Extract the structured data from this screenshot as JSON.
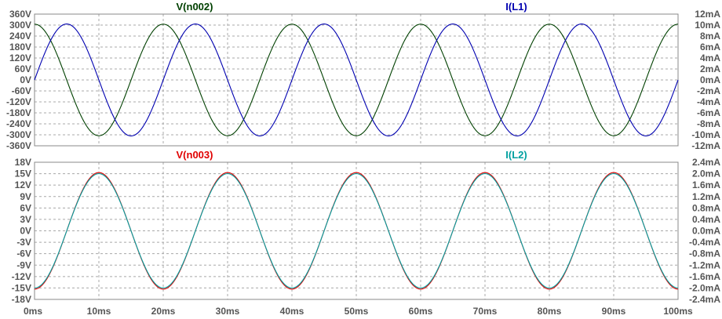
{
  "chart_data": [
    {
      "type": "line",
      "panel": "top",
      "x_ticks": [
        "0ms",
        "10ms",
        "20ms",
        "30ms",
        "40ms",
        "50ms",
        "60ms",
        "70ms",
        "80ms",
        "90ms",
        "100ms"
      ],
      "left_ticks": [
        "360V",
        "300V",
        "240V",
        "180V",
        "120V",
        "60V",
        "0V",
        "-60V",
        "-120V",
        "-180V",
        "-240V",
        "-300V",
        "-360V"
      ],
      "right_ticks": [
        "12mA",
        "10mA",
        "8mA",
        "6mA",
        "4mA",
        "2mA",
        "0mA",
        "-2mA",
        "-4mA",
        "-6mA",
        "-8mA",
        "-10mA",
        "-12mA"
      ],
      "xlim_ms": [
        0,
        100
      ],
      "ylim_left": [
        -360,
        360
      ],
      "ylim_right": [
        -12,
        12
      ],
      "grid": true,
      "series": [
        {
          "name": "V(n002)",
          "color": "#004000",
          "axis": "left",
          "kind": "cosine",
          "amplitude": 305,
          "period_ms": 20,
          "phase_ms": 0
        },
        {
          "name": "I(L1)",
          "color": "#0000b0",
          "axis": "right",
          "kind": "sine",
          "amplitude": 10.2,
          "period_ms": 20,
          "phase_ms": 0
        }
      ]
    },
    {
      "type": "line",
      "panel": "bottom",
      "x_ticks": [
        "0ms",
        "10ms",
        "20ms",
        "30ms",
        "40ms",
        "50ms",
        "60ms",
        "70ms",
        "80ms",
        "90ms",
        "100ms"
      ],
      "left_ticks": [
        "18V",
        "15V",
        "12V",
        "9V",
        "6V",
        "3V",
        "0V",
        "-3V",
        "-6V",
        "-9V",
        "-12V",
        "-15V",
        "-18V"
      ],
      "right_ticks": [
        "2.4mA",
        "2.0mA",
        "1.6mA",
        "1.2mA",
        "0.8mA",
        "0.4mA",
        "0.0mA",
        "-0.4mA",
        "-0.8mA",
        "-1.2mA",
        "-1.6mA",
        "-2.0mA",
        "-2.4mA"
      ],
      "xlim_ms": [
        0,
        100
      ],
      "ylim_left": [
        -18,
        18
      ],
      "ylim_right": [
        -2.4,
        2.4
      ],
      "grid": true,
      "series": [
        {
          "name": "V(n003)",
          "color": "#e00000",
          "axis": "left",
          "kind": "neg-cosine",
          "amplitude": 15.3,
          "period_ms": 20,
          "phase_ms": 0
        },
        {
          "name": "I(L2)",
          "color": "#00a0a0",
          "axis": "right",
          "kind": "neg-cosine",
          "amplitude": 2.0,
          "period_ms": 20,
          "phase_ms": 0
        }
      ]
    }
  ]
}
